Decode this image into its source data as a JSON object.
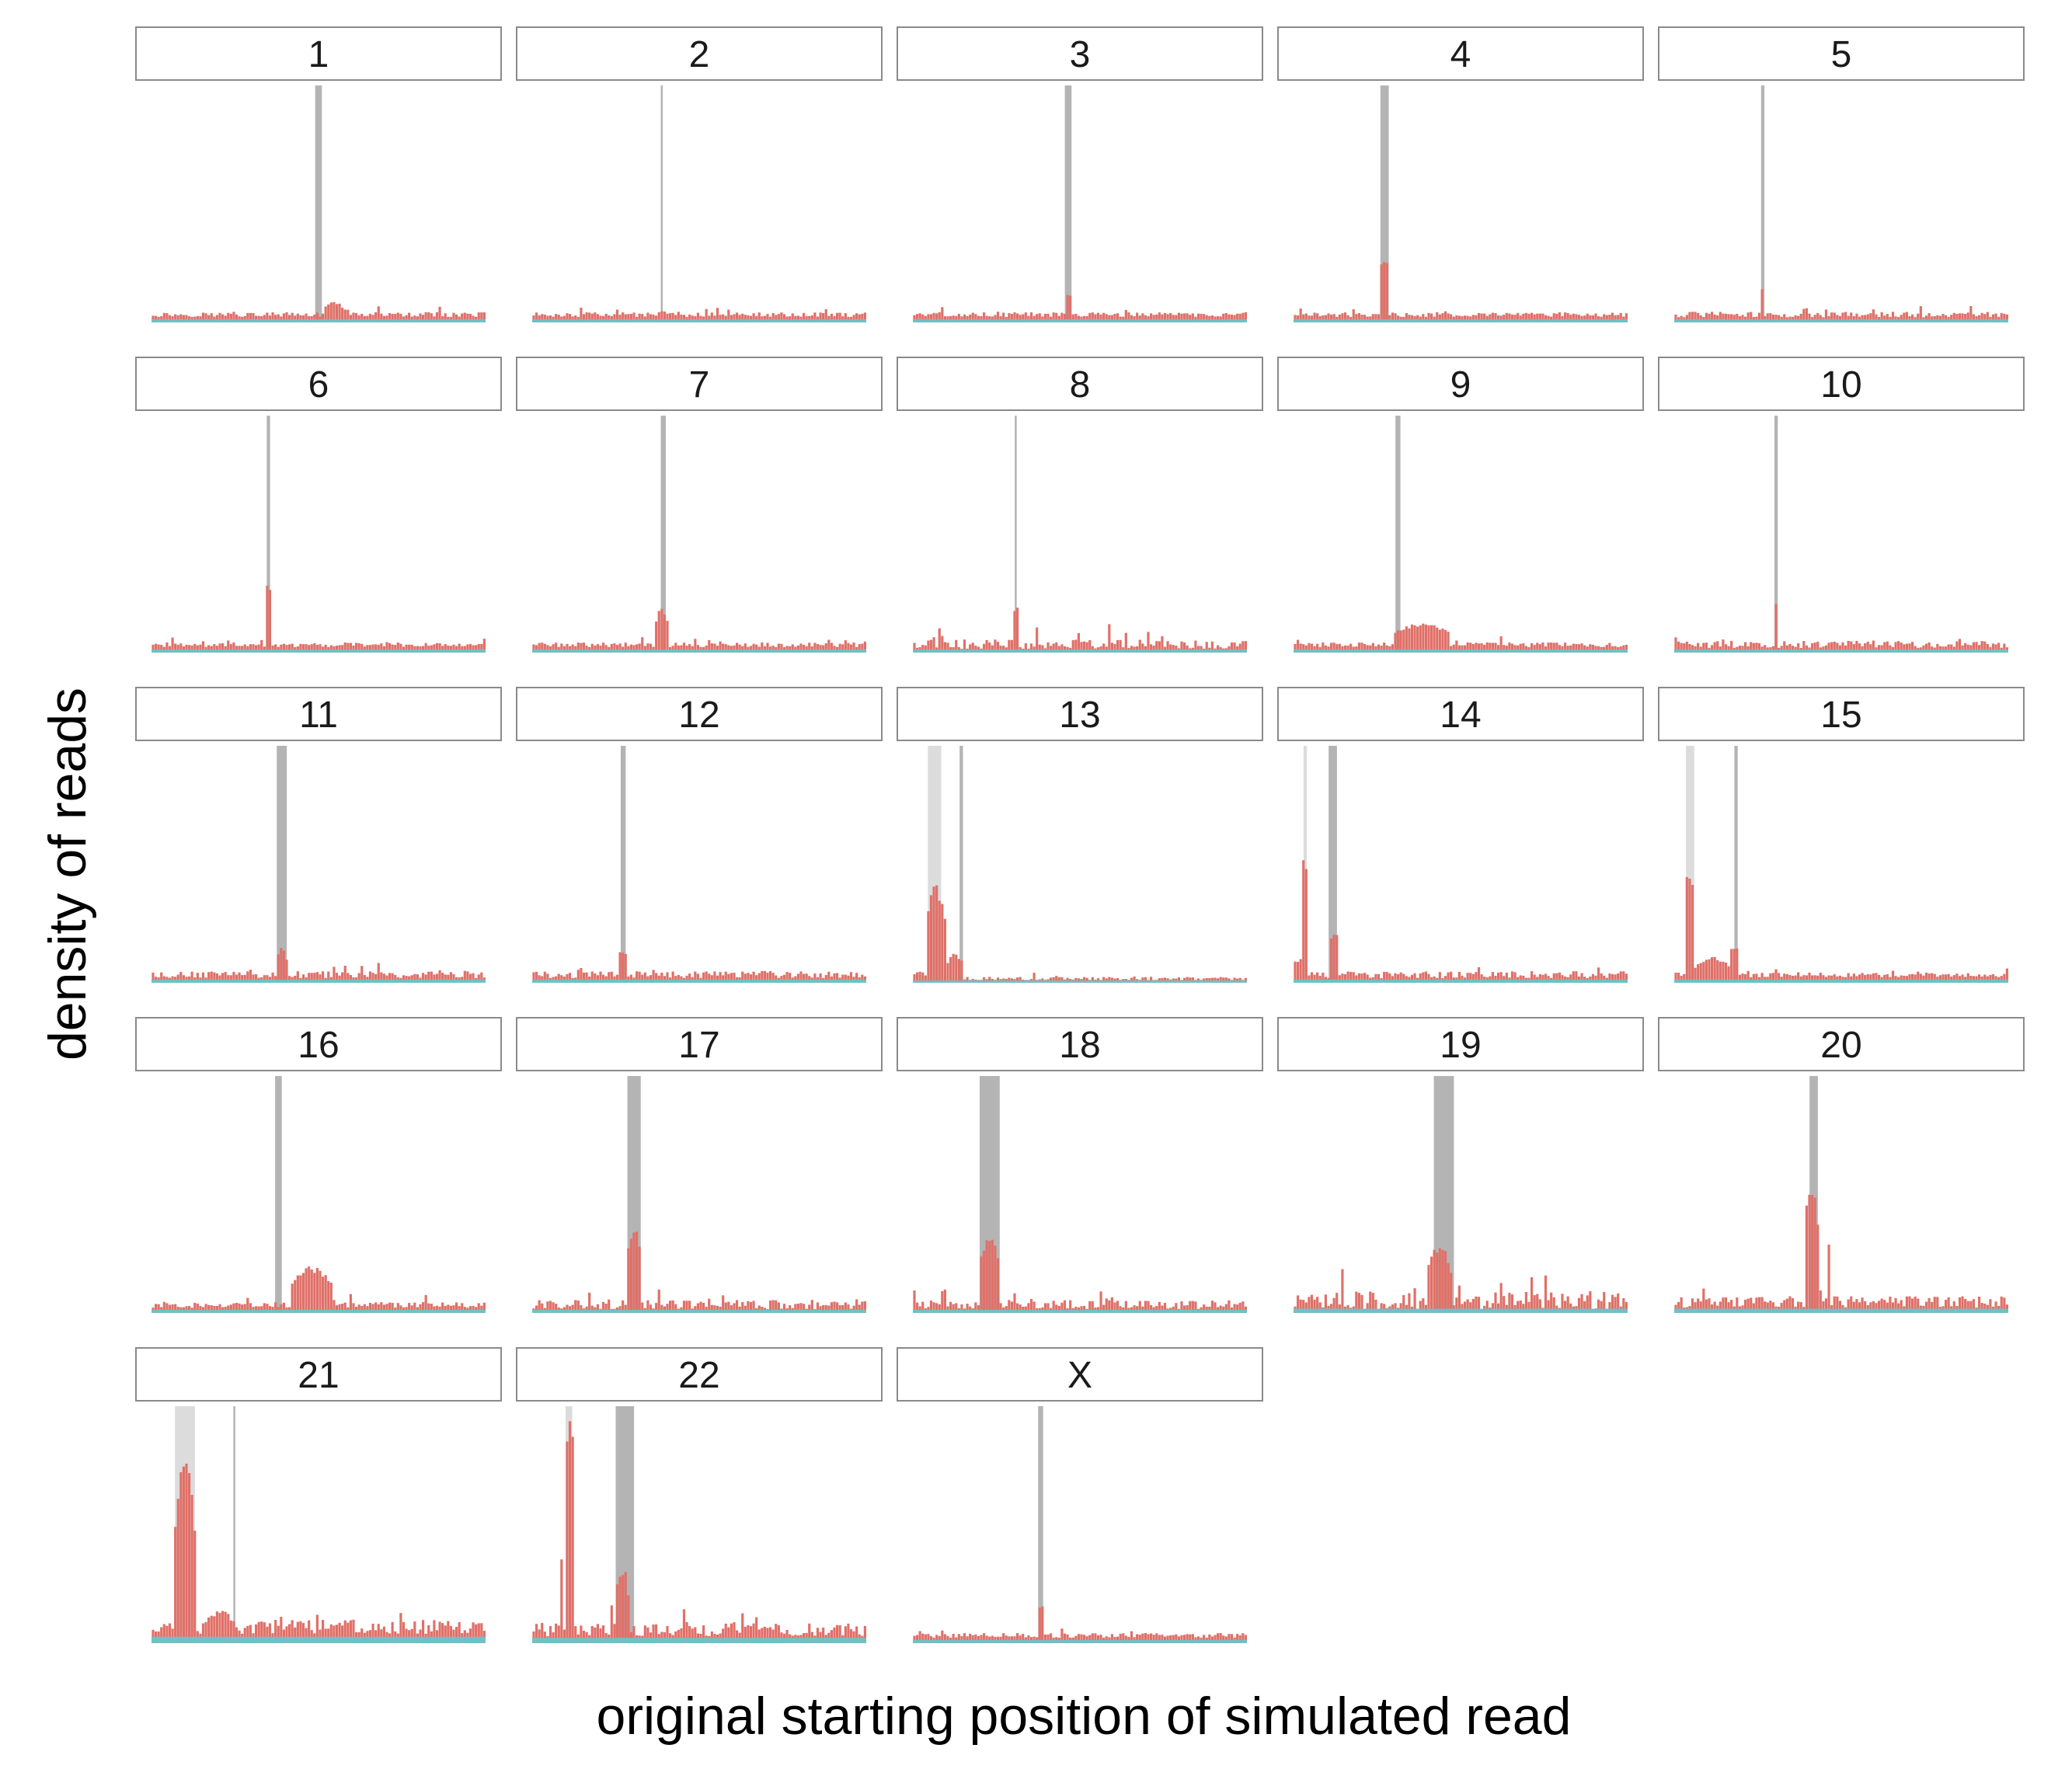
{
  "chart_data": {
    "type": "bar",
    "layout": "facet-grid",
    "columns": 5,
    "xlabel": "original starting position of simulated read",
    "ylabel": "density of reads",
    "colors": {
      "primary": "#e07068",
      "background_reads": "#6ac3c8",
      "centromere": "#b4b4b4",
      "other_region": "#dcdcdc",
      "strip_border": "#8a8a8a"
    },
    "panels": [
      {
        "label": "1",
        "bg": 0.03,
        "noise": 0.01,
        "regions": [
          {
            "x": [
              0.49,
              0.51
            ],
            "shade": "dark"
          }
        ],
        "peaks": [
          {
            "x": [
              0.515,
              0.58
            ],
            "h": 0.09
          }
        ]
      },
      {
        "label": "2",
        "bg": 0.03,
        "noise": 0.01,
        "regions": [
          {
            "x": [
              0.385,
              0.39
            ],
            "shade": "dark"
          }
        ],
        "peaks": [
          {
            "x": [
              0.37,
              0.41
            ],
            "h": 0.05
          }
        ]
      },
      {
        "label": "3",
        "bg": 0.03,
        "noise": 0.01,
        "regions": [
          {
            "x": [
              0.455,
              0.475
            ],
            "shade": "dark"
          }
        ],
        "peaks": [
          {
            "x": [
              0.455,
              0.475
            ],
            "h": 0.12
          }
        ]
      },
      {
        "label": "4",
        "bg": 0.03,
        "noise": 0.01,
        "regions": [
          {
            "x": [
              0.26,
              0.285
            ],
            "shade": "dark"
          }
        ],
        "peaks": [
          {
            "x": [
              0.26,
              0.285
            ],
            "h": 0.28
          }
        ]
      },
      {
        "label": "5",
        "bg": 0.03,
        "noise": 0.012,
        "regions": [
          {
            "x": [
              0.26,
              0.27
            ],
            "shade": "dark"
          }
        ],
        "peaks": [
          {
            "x": [
              0.26,
              0.27
            ],
            "h": 0.15
          },
          {
            "x": [
              0.38,
              0.4
            ],
            "h": 0.06
          }
        ]
      },
      {
        "label": "6",
        "bg": 0.03,
        "noise": 0.01,
        "regions": [
          {
            "x": [
              0.345,
              0.355
            ],
            "shade": "dark"
          }
        ],
        "peaks": [
          {
            "x": [
              0.34,
              0.36
            ],
            "h": 0.31
          },
          {
            "x": [
              0.15,
              0.16
            ],
            "h": 0.05
          }
        ]
      },
      {
        "label": "7",
        "bg": 0.03,
        "noise": 0.01,
        "regions": [
          {
            "x": [
              0.385,
              0.4
            ],
            "shade": "dark"
          }
        ],
        "peaks": [
          {
            "x": [
              0.37,
              0.405
            ],
            "h": 0.2
          }
        ]
      },
      {
        "label": "8",
        "bg": 0.03,
        "noise": 0.02,
        "regions": [
          {
            "x": [
              0.305,
              0.31
            ],
            "shade": "dark"
          }
        ],
        "peaks": [
          {
            "x": [
              0.3,
              0.315
            ],
            "h": 0.19
          },
          {
            "x": [
              0.075,
              0.085
            ],
            "h": 0.12
          },
          {
            "x": [
              0.585,
              0.595
            ],
            "h": 0.12
          }
        ]
      },
      {
        "label": "9",
        "bg": 0.03,
        "noise": 0.01,
        "regions": [
          {
            "x": [
              0.305,
              0.32
            ],
            "shade": "dark"
          }
        ],
        "peaks": [
          {
            "x": [
              0.3,
              0.47
            ],
            "h": 0.13
          }
        ]
      },
      {
        "label": "10",
        "bg": 0.03,
        "noise": 0.015,
        "regions": [
          {
            "x": [
              0.3,
              0.31
            ],
            "shade": "dark"
          }
        ],
        "peaks": [
          {
            "x": [
              0.3,
              0.31
            ],
            "h": 0.22
          }
        ]
      },
      {
        "label": "11",
        "bg": 0.03,
        "noise": 0.015,
        "regions": [
          {
            "x": [
              0.375,
              0.405
            ],
            "shade": "dark"
          }
        ],
        "peaks": [
          {
            "x": [
              0.375,
              0.405
            ],
            "h": 0.16
          },
          {
            "x": [
              0.675,
              0.685
            ],
            "h": 0.09
          }
        ]
      },
      {
        "label": "12",
        "bg": 0.03,
        "noise": 0.015,
        "regions": [
          {
            "x": [
              0.265,
              0.28
            ],
            "shade": "dark"
          }
        ],
        "peaks": [
          {
            "x": [
              0.26,
              0.28
            ],
            "h": 0.13
          }
        ]
      },
      {
        "label": "13",
        "bg": 0.015,
        "noise": 0.008,
        "regions": [
          {
            "x": [
              0.045,
              0.085
            ],
            "shade": "light"
          },
          {
            "x": [
              0.14,
              0.15
            ],
            "shade": "dark"
          }
        ],
        "peaks": [
          {
            "x": [
              0.0,
              0.04
            ],
            "h": 0.05
          },
          {
            "x": [
              0.04,
              0.1
            ],
            "h": 0.42
          },
          {
            "x": [
              0.1,
              0.15
            ],
            "h": 0.13
          }
        ]
      },
      {
        "label": "14",
        "bg": 0.03,
        "noise": 0.015,
        "regions": [
          {
            "x": [
              0.03,
              0.04
            ],
            "shade": "light"
          },
          {
            "x": [
              0.105,
              0.13
            ],
            "shade": "dark"
          }
        ],
        "peaks": [
          {
            "x": [
              0.0,
              0.025
            ],
            "h": 0.1
          },
          {
            "x": [
              0.025,
              0.045
            ],
            "h": 0.52
          },
          {
            "x": [
              0.105,
              0.13
            ],
            "h": 0.21
          }
        ]
      },
      {
        "label": "15",
        "bg": 0.03,
        "noise": 0.01,
        "regions": [
          {
            "x": [
              0.035,
              0.06
            ],
            "shade": "light"
          },
          {
            "x": [
              0.18,
              0.19
            ],
            "shade": "dark"
          }
        ],
        "peaks": [
          {
            "x": [
              0.035,
              0.06
            ],
            "h": 0.45
          },
          {
            "x": [
              0.06,
              0.17
            ],
            "h": 0.11
          },
          {
            "x": [
              0.17,
              0.19
            ],
            "h": 0.16
          }
        ]
      },
      {
        "label": "16",
        "bg": 0.03,
        "noise": 0.012,
        "regions": [
          {
            "x": [
              0.37,
              0.39
            ],
            "shade": "dark"
          }
        ],
        "peaks": [
          {
            "x": [
              0.42,
              0.54
            ],
            "h": 0.2
          }
        ]
      },
      {
        "label": "17",
        "bg": 0.03,
        "noise": 0.02,
        "regions": [
          {
            "x": [
              0.285,
              0.325
            ],
            "shade": "dark"
          }
        ],
        "peaks": [
          {
            "x": [
              0.285,
              0.325
            ],
            "h": 0.38
          }
        ]
      },
      {
        "label": "18",
        "bg": 0.03,
        "noise": 0.02,
        "regions": [
          {
            "x": [
              0.2,
              0.26
            ],
            "shade": "dark"
          }
        ],
        "peaks": [
          {
            "x": [
              0.2,
              0.26
            ],
            "h": 0.33
          },
          {
            "x": [
              0.0,
              0.01
            ],
            "h": 0.11
          }
        ]
      },
      {
        "label": "19",
        "bg": 0.04,
        "noise": 0.04,
        "regions": [
          {
            "x": [
              0.42,
              0.48
            ],
            "shade": "dark"
          }
        ],
        "peaks": [
          {
            "x": [
              0.4,
              0.47
            ],
            "h": 0.3
          },
          {
            "x": [
              0.055,
              0.06
            ],
            "h": 0.16
          },
          {
            "x": [
              0.145,
              0.15
            ],
            "h": 0.2
          }
        ]
      },
      {
        "label": "20",
        "bg": 0.04,
        "noise": 0.025,
        "regions": [
          {
            "x": [
              0.405,
              0.43
            ],
            "shade": "dark"
          }
        ],
        "peaks": [
          {
            "x": [
              0.39,
              0.43
            ],
            "h": 0.57
          },
          {
            "x": [
              0.46,
              0.47
            ],
            "h": 0.29
          }
        ]
      },
      {
        "label": "21",
        "bg": 0.06,
        "noise": 0.03,
        "regions": [
          {
            "x": [
              0.07,
              0.13
            ],
            "shade": "light"
          },
          {
            "x": [
              0.245,
              0.25
            ],
            "shade": "dark"
          }
        ],
        "peaks": [
          {
            "x": [
              0.07,
              0.13
            ],
            "h": 0.78
          },
          {
            "x": [
              0.16,
              0.25
            ],
            "h": 0.14
          }
        ]
      },
      {
        "label": "22",
        "bg": 0.05,
        "noise": 0.03,
        "regions": [
          {
            "x": [
              0.1,
              0.12
            ],
            "shade": "light"
          },
          {
            "x": [
              0.25,
              0.305
            ],
            "shade": "dark"
          }
        ],
        "peaks": [
          {
            "x": [
              0.1,
              0.125
            ],
            "h": 0.96
          },
          {
            "x": [
              0.08,
              0.09
            ],
            "h": 0.4
          },
          {
            "x": [
              0.25,
              0.29
            ],
            "h": 0.33
          }
        ]
      },
      {
        "label": "X",
        "bg": 0.03,
        "noise": 0.01,
        "regions": [
          {
            "x": [
              0.375,
              0.39
            ],
            "shade": "dark"
          }
        ],
        "peaks": [
          {
            "x": [
              0.375,
              0.395
            ],
            "h": 0.16
          }
        ]
      }
    ]
  }
}
